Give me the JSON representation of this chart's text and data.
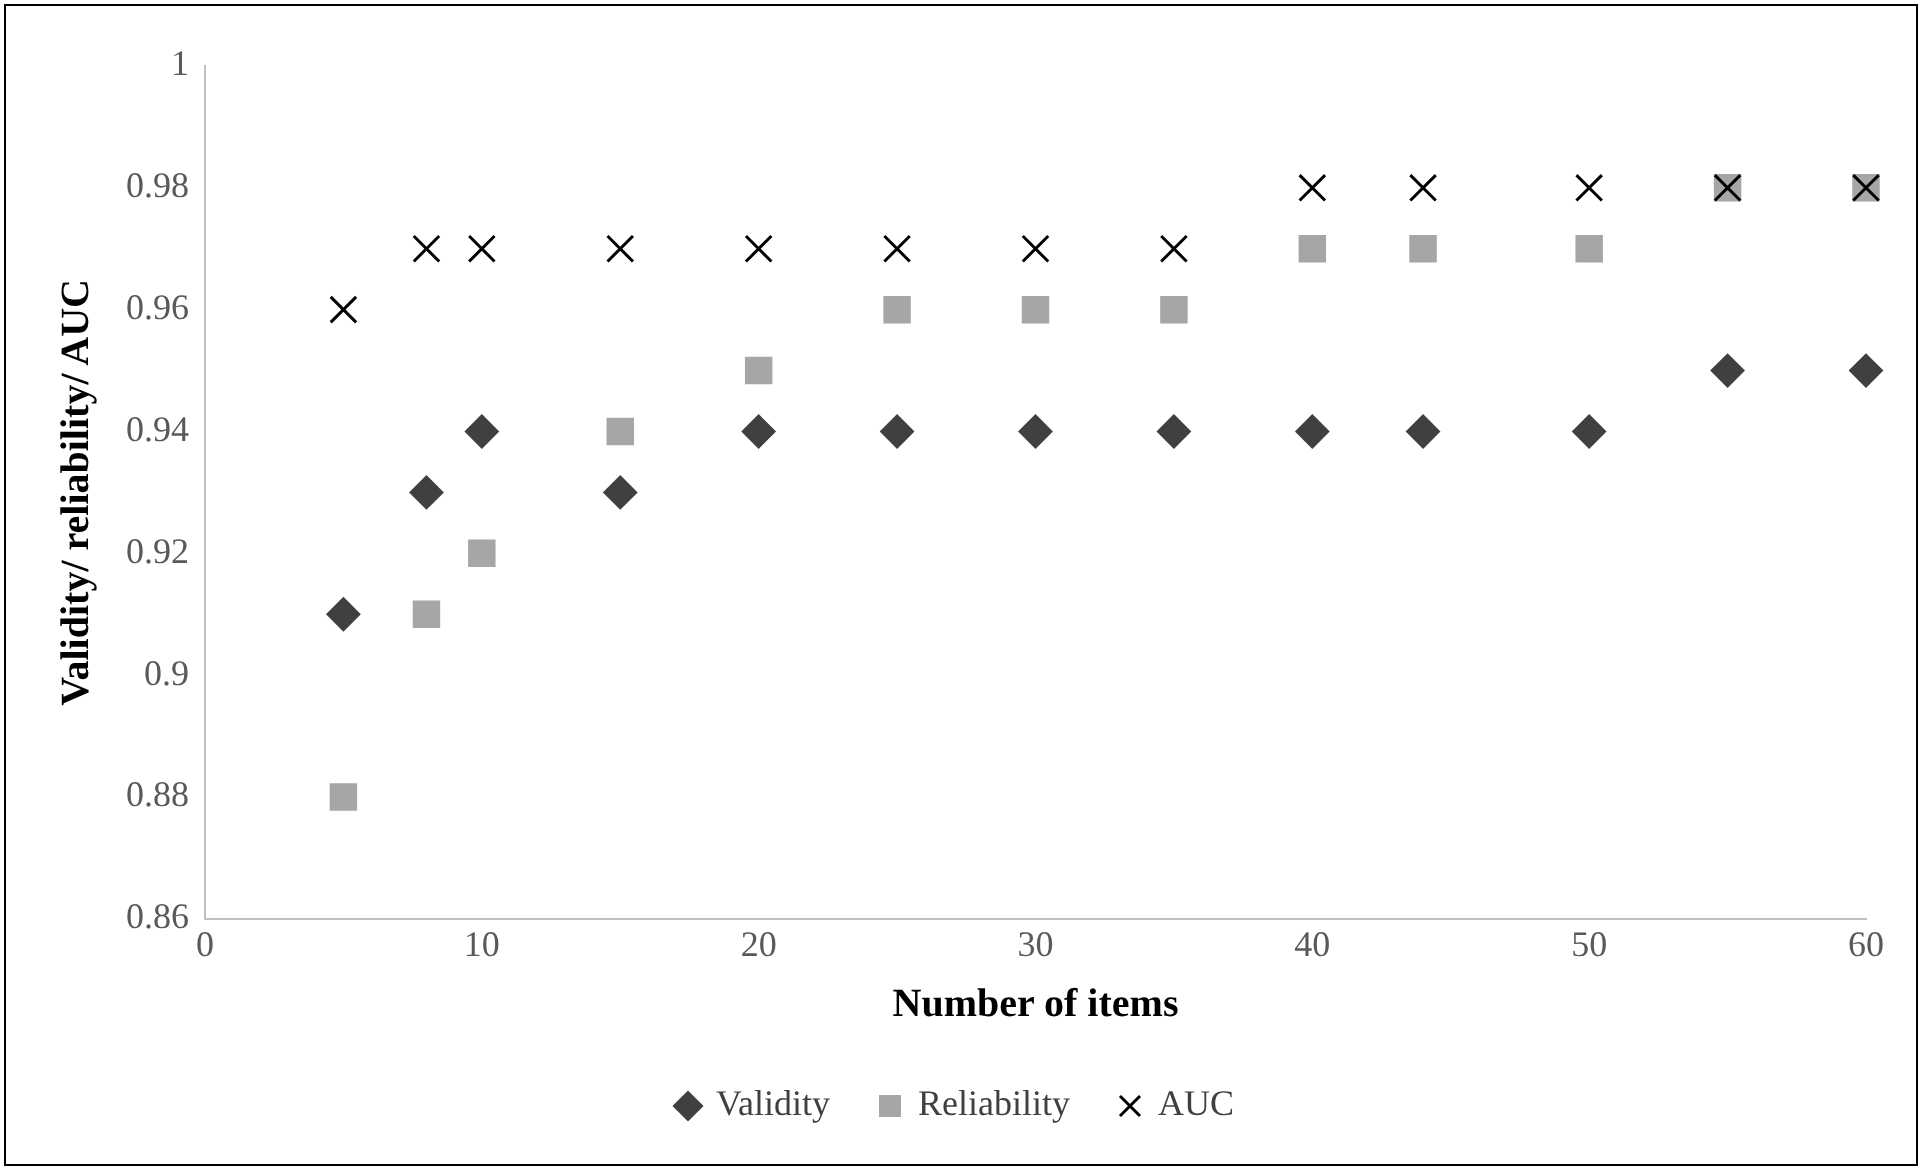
{
  "chart_data": {
    "type": "scatter",
    "xlabel": "Number of items",
    "ylabel": "Validity/ reliability/ AUC",
    "x": [
      5,
      8,
      10,
      15,
      20,
      25,
      30,
      35,
      40,
      44,
      50,
      55,
      60
    ],
    "series": [
      {
        "name": "Validity",
        "color": "#404040",
        "marker": "diamond",
        "values": [
          0.91,
          0.93,
          0.94,
          0.93,
          0.94,
          0.94,
          0.94,
          0.94,
          0.94,
          0.94,
          0.94,
          0.95,
          0.95
        ]
      },
      {
        "name": "Reliability",
        "color": "#a6a6a6",
        "marker": "square",
        "values": [
          0.88,
          0.91,
          0.92,
          0.94,
          0.95,
          0.96,
          0.96,
          0.96,
          0.97,
          0.97,
          0.97,
          0.98,
          0.98
        ]
      },
      {
        "name": "AUC",
        "color": "#000000",
        "marker": "cross",
        "values": [
          0.96,
          0.97,
          0.97,
          0.97,
          0.97,
          0.97,
          0.97,
          0.97,
          0.98,
          0.98,
          0.98,
          0.98,
          0.98
        ]
      }
    ],
    "xlim": [
      0,
      60
    ],
    "xticks": [
      0,
      10,
      20,
      30,
      40,
      50,
      60
    ],
    "ylim": [
      0.86,
      1
    ],
    "yticks": [
      0.86,
      0.88,
      0.9,
      0.92,
      0.94,
      0.96,
      0.98,
      1
    ],
    "grid": false,
    "legend": "bottom"
  }
}
